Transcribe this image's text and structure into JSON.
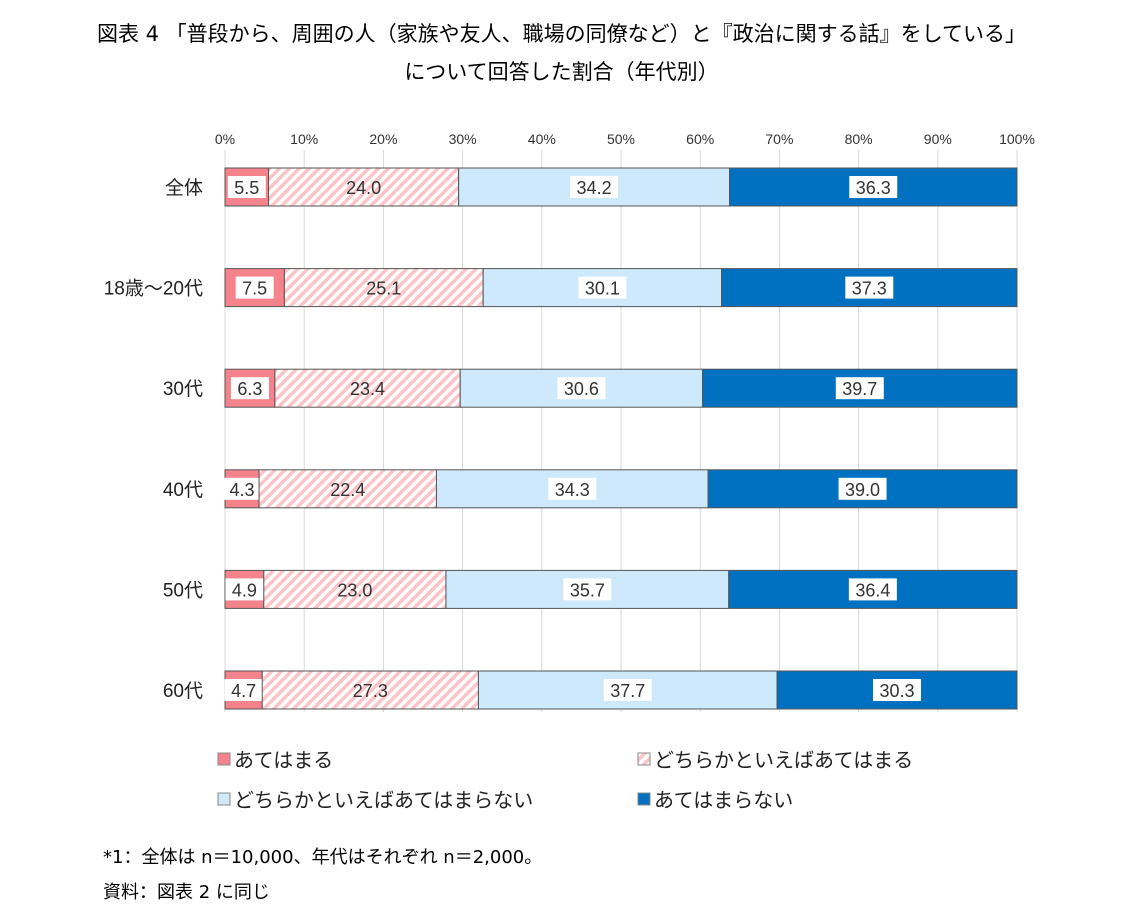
{
  "title_line1": "図表 4 「普段から、周囲の人（家族や友人、職場の同僚など）と『政治に関する話』をしている」",
  "title_line2": "について回答した割合（年代別）",
  "notes": [
    "*1：全体は n＝10,000、年代はそれぞれ n＝2,000。",
    "資料：図表 2 に同じ"
  ],
  "chart_data": {
    "type": "bar",
    "orientation": "horizontal",
    "stacked": "100%",
    "categories": [
      "全体",
      "18歳～20代",
      "30代",
      "40代",
      "50代",
      "60代"
    ],
    "xlim": [
      0,
      100
    ],
    "x_ticks": [
      "0%",
      "10%",
      "20%",
      "30%",
      "40%",
      "50%",
      "60%",
      "70%",
      "80%",
      "90%",
      "100%"
    ],
    "grid": true,
    "legend_position": "bottom",
    "series": [
      {
        "name": "あてはまる",
        "color": "#f4838c",
        "values": [
          5.5,
          7.5,
          6.3,
          4.3,
          4.9,
          4.7
        ]
      },
      {
        "name": "どちらかといえばあてはまる",
        "color": "#fbd0d3",
        "hatched": true,
        "values": [
          24.0,
          25.1,
          23.4,
          22.4,
          23.0,
          27.3
        ]
      },
      {
        "name": "どちらかといえばあてはまらない",
        "color": "#cde9fb",
        "values": [
          34.2,
          30.1,
          30.6,
          34.3,
          35.7,
          37.7
        ]
      },
      {
        "name": "あてはまらない",
        "color": "#0070c0",
        "values": [
          36.3,
          37.3,
          39.7,
          39.0,
          36.4,
          30.3
        ]
      }
    ]
  }
}
